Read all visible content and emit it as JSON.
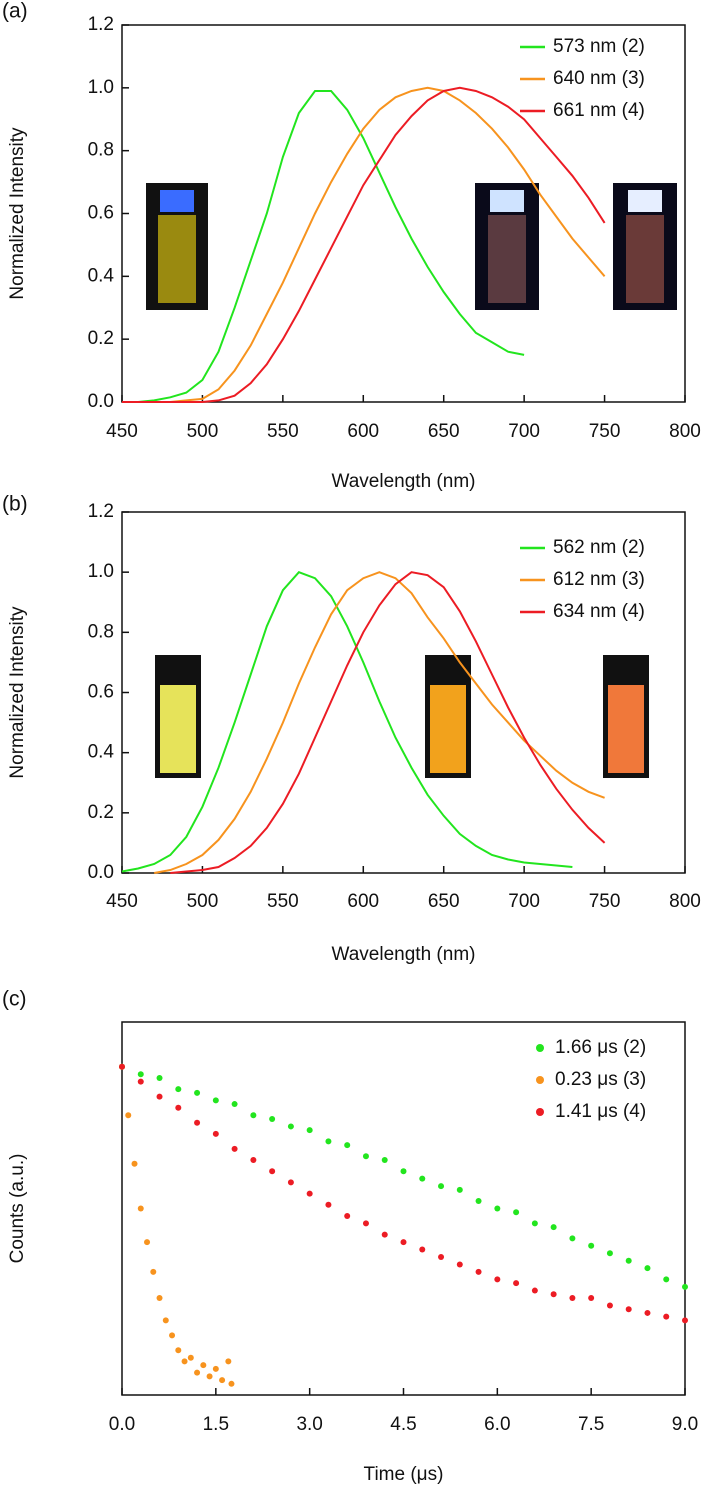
{
  "chart_data": [
    {
      "type": "line",
      "title": "(a)",
      "x_label": "Wavelength (nm)",
      "y_label": "Normalized Intensity",
      "xlim": [
        450,
        800
      ],
      "xticks": [
        450,
        500,
        550,
        600,
        650,
        700,
        750,
        800
      ],
      "ylim": [
        0,
        1.2
      ],
      "yticks": [
        {
          "value": 0,
          "label": "0.0"
        },
        {
          "value": 0.2,
          "label": "0.2"
        },
        {
          "value": 0.4,
          "label": "0.4"
        },
        {
          "value": 0.6,
          "label": "0.6"
        },
        {
          "value": 0.8,
          "label": "0.8"
        },
        {
          "value": 1,
          "label": "1.0"
        },
        {
          "value": 1.2,
          "label": "1.2"
        }
      ],
      "x": [
        450,
        460,
        470,
        480,
        490,
        500,
        510,
        520,
        530,
        540,
        550,
        560,
        570,
        580,
        590,
        600,
        610,
        620,
        630,
        640,
        650,
        660,
        670,
        680,
        690,
        700,
        710,
        720,
        730,
        740,
        750
      ],
      "series": [
        {
          "name": "573 nm (2)",
          "color": "#22e51e",
          "values": [
            0,
            0,
            0.005,
            0.015,
            0.03,
            0.07,
            0.16,
            0.3,
            0.45,
            0.6,
            0.78,
            0.92,
            0.99,
            0.99,
            0.93,
            0.84,
            0.73,
            0.62,
            0.52,
            0.43,
            0.35,
            0.28,
            0.22,
            0.19,
            0.16,
            0.15,
            null,
            null,
            null,
            null,
            null
          ]
        },
        {
          "name": "640 nm (3)",
          "color": "#f7931e",
          "values": [
            0,
            0,
            0,
            0,
            0.005,
            0.01,
            0.04,
            0.1,
            0.18,
            0.28,
            0.38,
            0.49,
            0.6,
            0.7,
            0.79,
            0.87,
            0.93,
            0.97,
            0.99,
            1.0,
            0.99,
            0.96,
            0.92,
            0.87,
            0.81,
            0.74,
            0.66,
            0.59,
            0.52,
            0.46,
            0.4
          ]
        },
        {
          "name": "661 nm (4)",
          "color": "#ec1c24",
          "values": [
            0,
            0,
            0,
            0,
            0,
            0,
            0.005,
            0.02,
            0.06,
            0.12,
            0.2,
            0.29,
            0.39,
            0.49,
            0.59,
            0.69,
            0.77,
            0.85,
            0.91,
            0.96,
            0.99,
            1.0,
            0.99,
            0.97,
            0.94,
            0.9,
            0.84,
            0.78,
            0.72,
            0.65,
            0.57
          ]
        }
      ]
    },
    {
      "type": "line",
      "title": "(b)",
      "x_label": "Wavelength (nm)",
      "y_label": "Normalized Intensity",
      "xlim": [
        450,
        800
      ],
      "xticks": [
        450,
        500,
        550,
        600,
        650,
        700,
        750,
        800
      ],
      "ylim": [
        0,
        1.2
      ],
      "yticks": [
        {
          "value": 0,
          "label": "0.0"
        },
        {
          "value": 0.2,
          "label": "0.2"
        },
        {
          "value": 0.4,
          "label": "0.4"
        },
        {
          "value": 0.6,
          "label": "0.6"
        },
        {
          "value": 0.8,
          "label": "0.8"
        },
        {
          "value": 1,
          "label": "1.0"
        },
        {
          "value": 1.2,
          "label": "1.2"
        }
      ],
      "x": [
        450,
        460,
        470,
        480,
        490,
        500,
        510,
        520,
        530,
        540,
        550,
        560,
        570,
        580,
        590,
        600,
        610,
        620,
        630,
        640,
        650,
        660,
        670,
        680,
        690,
        700,
        710,
        720,
        730,
        740,
        750
      ],
      "series": [
        {
          "name": "562 nm (2)",
          "color": "#22e51e",
          "values": [
            0.005,
            0.015,
            0.03,
            0.06,
            0.12,
            0.22,
            0.35,
            0.5,
            0.66,
            0.82,
            0.94,
            1.0,
            0.98,
            0.92,
            0.82,
            0.7,
            0.57,
            0.45,
            0.35,
            0.26,
            0.19,
            0.13,
            0.09,
            0.06,
            0.045,
            0.035,
            0.03,
            0.025,
            0.02,
            null,
            null
          ]
        },
        {
          "name": "612 nm (3)",
          "color": "#f7931e",
          "values": [
            null,
            null,
            0,
            0.01,
            0.03,
            0.06,
            0.11,
            0.18,
            0.27,
            0.38,
            0.5,
            0.63,
            0.75,
            0.86,
            0.94,
            0.98,
            1.0,
            0.98,
            0.93,
            0.85,
            0.78,
            0.7,
            0.63,
            0.56,
            0.5,
            0.44,
            0.39,
            0.34,
            0.3,
            0.27,
            0.25
          ]
        },
        {
          "name": "634 nm (4)",
          "color": "#ec1c24",
          "values": [
            null,
            null,
            null,
            0,
            0.005,
            0.01,
            0.02,
            0.05,
            0.09,
            0.15,
            0.23,
            0.33,
            0.45,
            0.57,
            0.69,
            0.8,
            0.89,
            0.96,
            1.0,
            0.99,
            0.95,
            0.87,
            0.77,
            0.66,
            0.55,
            0.45,
            0.36,
            0.28,
            0.21,
            0.15,
            0.1
          ]
        }
      ]
    },
    {
      "type": "scatter",
      "title": "(c)",
      "x_label": "Time (μs)",
      "y_label": "Counts (a.u.)",
      "xlim": [
        0,
        9
      ],
      "xticks": [
        {
          "value": 0,
          "label": "0.0"
        },
        {
          "value": 1.5,
          "label": "1.5"
        },
        {
          "value": 3,
          "label": "3.0"
        },
        {
          "value": 4.5,
          "label": "4.5"
        },
        {
          "value": 6,
          "label": "6.0"
        },
        {
          "value": 7.5,
          "label": "7.5"
        },
        {
          "value": 9,
          "label": "9.0"
        }
      ],
      "ylim": [
        0,
        1
      ],
      "series": [
        {
          "name": "1.66 μs (2)",
          "color": "#22e51e",
          "x": [
            0,
            0.3,
            0.6,
            0.9,
            1.2,
            1.5,
            1.8,
            2.1,
            2.4,
            2.7,
            3.0,
            3.3,
            3.6,
            3.9,
            4.2,
            4.5,
            4.8,
            5.1,
            5.4,
            5.7,
            6.0,
            6.3,
            6.6,
            6.9,
            7.2,
            7.5,
            7.8,
            8.1,
            8.4,
            8.7,
            9.0
          ],
          "values": [
            0.88,
            0.86,
            0.85,
            0.82,
            0.81,
            0.79,
            0.78,
            0.75,
            0.74,
            0.72,
            0.71,
            0.68,
            0.67,
            0.64,
            0.63,
            0.6,
            0.58,
            0.56,
            0.55,
            0.52,
            0.5,
            0.49,
            0.46,
            0.45,
            0.42,
            0.4,
            0.38,
            0.36,
            0.34,
            0.31,
            0.29
          ]
        },
        {
          "name": "0.23 μs (3)",
          "color": "#f7931e",
          "x": [
            0,
            0.1,
            0.2,
            0.3,
            0.4,
            0.5,
            0.6,
            0.7,
            0.8,
            0.9,
            1.0,
            1.1,
            1.2,
            1.3,
            1.4,
            1.5,
            1.6,
            1.7,
            1.75
          ],
          "values": [
            0.88,
            0.75,
            0.62,
            0.5,
            0.41,
            0.33,
            0.26,
            0.2,
            0.16,
            0.12,
            0.09,
            0.1,
            0.06,
            0.08,
            0.05,
            0.07,
            0.04,
            0.09,
            0.03
          ]
        },
        {
          "name": "1.41 μs (4)",
          "color": "#ec1c24",
          "x": [
            0,
            0.3,
            0.6,
            0.9,
            1.2,
            1.5,
            1.8,
            2.1,
            2.4,
            2.7,
            3.0,
            3.3,
            3.6,
            3.9,
            4.2,
            4.5,
            4.8,
            5.1,
            5.4,
            5.7,
            6.0,
            6.3,
            6.6,
            6.9,
            7.2,
            7.5,
            7.8,
            8.1,
            8.4,
            8.7,
            9.0
          ],
          "values": [
            0.88,
            0.84,
            0.8,
            0.77,
            0.73,
            0.7,
            0.66,
            0.63,
            0.6,
            0.57,
            0.54,
            0.51,
            0.48,
            0.46,
            0.43,
            0.41,
            0.39,
            0.37,
            0.35,
            0.33,
            0.31,
            0.3,
            0.28,
            0.27,
            0.26,
            0.26,
            0.24,
            0.23,
            0.22,
            0.21,
            0.2
          ]
        }
      ]
    }
  ]
}
